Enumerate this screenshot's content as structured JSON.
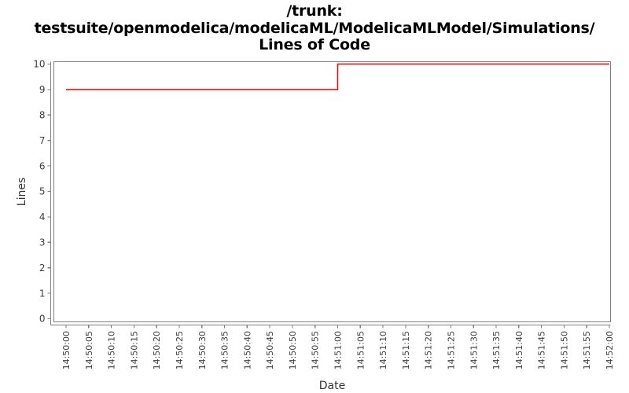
{
  "title": {
    "line1": "/trunk:",
    "line2": "testsuite/openmodelica/modelicaML/ModelicaMLModel/Simulations/",
    "line3": "Lines of Code",
    "color": "#000000"
  },
  "chart_data": {
    "type": "line",
    "subtype": "step",
    "title": "/trunk: testsuite/openmodelica/modelicaML/ModelicaMLModel/Simulations/ Lines of Code",
    "xlabel": "Date",
    "ylabel": "Lines",
    "grid": false,
    "legend": "none",
    "background_color": "#ffffff",
    "border_color": "#808080",
    "axis_color": "#808080",
    "tick_label_color": "#404040",
    "axis_label_color": "#333333",
    "xlim": [
      "14:50:00",
      "14:52:00"
    ],
    "ylim": [
      0,
      10
    ],
    "y_ticks": [
      0,
      1,
      2,
      3,
      4,
      5,
      6,
      7,
      8,
      9,
      10
    ],
    "x_tick_labels": [
      "14:50:00",
      "14:50:05",
      "14:50:10",
      "14:50:15",
      "14:50:20",
      "14:50:25",
      "14:50:30",
      "14:50:35",
      "14:50:40",
      "14:50:45",
      "14:50:50",
      "14:50:55",
      "14:51:00",
      "14:51:05",
      "14:51:10",
      "14:51:15",
      "14:51:20",
      "14:51:25",
      "14:51:30",
      "14:51:35",
      "14:51:40",
      "14:51:45",
      "14:51:50",
      "14:51:55",
      "14:52:00"
    ],
    "series": [
      {
        "name": "Lines of Code",
        "color": "#ff0000",
        "points": [
          {
            "x": "14:50:00",
            "y": 9
          },
          {
            "x": "14:51:00",
            "y": 9
          },
          {
            "x": "14:51:00",
            "y": 10
          },
          {
            "x": "14:52:00",
            "y": 10
          }
        ]
      }
    ]
  }
}
